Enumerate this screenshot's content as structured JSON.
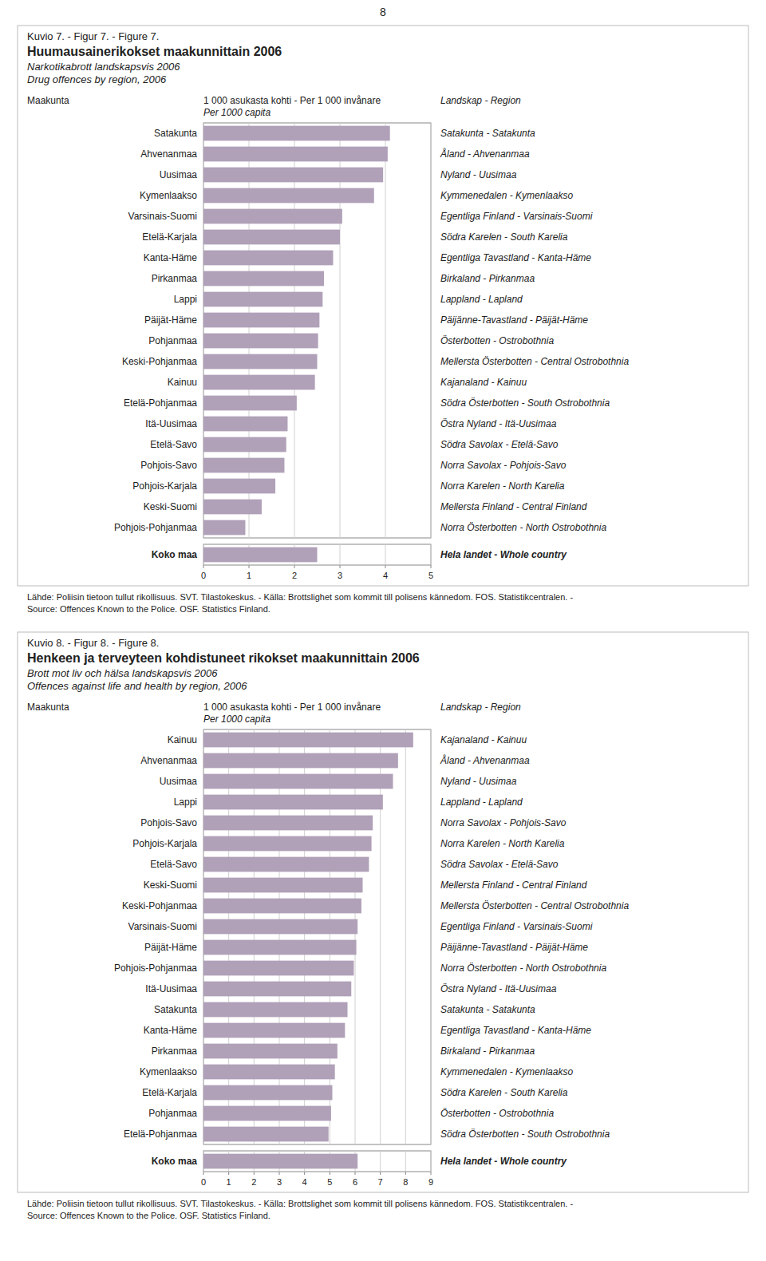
{
  "page_number": "8",
  "chart_data": [
    {
      "type": "bar",
      "orientation": "horizontal",
      "figure_label": "Kuvio 7. - Figur 7. - Figure 7.",
      "title": "Huumausainerikokset maakunnittain 2006",
      "subtitle": [
        "Narkotikabrott landskapsvis 2006",
        "Drug offences by region, 2006"
      ],
      "x_label": [
        "1 000 asukasta kohti - Per 1 000 invånare",
        "Per 1000 capita"
      ],
      "category_header": "Maakunta",
      "secondary_header": "Landskap - Region",
      "categories": [
        "Satakunta",
        "Ahvenanmaa",
        "Uusimaa",
        "Kymenlaakso",
        "Varsinais-Suomi",
        "Etelä-Karjala",
        "Kanta-Häme",
        "Pirkanmaa",
        "Lappi",
        "Päijät-Häme",
        "Pohjanmaa",
        "Keski-Pohjanmaa",
        "Kainuu",
        "Etelä-Pohjanmaa",
        "Itä-Uusimaa",
        "Etelä-Savo",
        "Pohjois-Savo",
        "Pohjois-Karjala",
        "Keski-Suomi",
        "Pohjois-Pohjanmaa"
      ],
      "secondary_labels": [
        "Satakunta - Satakunta",
        "Åland - Ahvenanmaa",
        "Nyland - Uusimaa",
        "Kymmenedalen - Kymenlaakso",
        "Egentliga Finland - Varsinais-Suomi",
        "Södra Karelen - South Karelia",
        "Egentliga Tavastland - Kanta-Häme",
        "Birkaland - Pirkanmaa",
        "Lappland - Lapland",
        "Päijänne-Tavastland - Päijät-Häme",
        "Österbotten - Ostrobothnia",
        "Mellersta Österbotten - Central Ostrobothnia",
        "Kajanaland - Kainuu",
        "Södra Österbotten - South Ostrobothnia",
        "Östra Nyland - Itä-Uusimaa",
        "Södra Savolax - Etelä-Savo",
        "Norra Savolax - Pohjois-Savo",
        "Norra Karelen - North Karelia",
        "Mellersta Finland - Central Finland",
        "Norra Österbotten - North Ostrobothnia"
      ],
      "values": [
        4.1,
        4.05,
        3.95,
        3.75,
        3.05,
        3.0,
        2.85,
        2.65,
        2.62,
        2.55,
        2.52,
        2.5,
        2.45,
        2.05,
        1.85,
        1.82,
        1.78,
        1.58,
        1.28,
        0.92
      ],
      "total": {
        "category": "Koko maa",
        "secondary_label": "Hela landet - Whole country",
        "value": 2.5
      },
      "xlim": [
        0,
        5
      ],
      "xticks": [
        0,
        1,
        2,
        3,
        4,
        5
      ],
      "grid": true,
      "color": "#b0a0b8",
      "source": [
        "Lähde: Poliisin tietoon tullut rikollisuus. SVT. Tilastokeskus. - Källa: Brottslighet som kommit till polisens kännedom. FOS. Statistikcentralen. -",
        "Source: Offences Known to the Police. OSF. Statistics Finland."
      ]
    },
    {
      "type": "bar",
      "orientation": "horizontal",
      "figure_label": "Kuvio 8. - Figur 8. - Figure 8.",
      "title": "Henkeen ja terveyteen kohdistuneet rikokset maakunnittain 2006",
      "subtitle": [
        "Brott mot liv och hälsa landskapsvis 2006",
        "Offences against life and health by region, 2006"
      ],
      "x_label": [
        "1 000 asukasta kohti - Per 1 000 invånare",
        "Per 1000 capita"
      ],
      "category_header": "Maakunta",
      "secondary_header": "Landskap - Region",
      "categories": [
        "Kainuu",
        "Ahvenanmaa",
        "Uusimaa",
        "Lappi",
        "Pohjois-Savo",
        "Pohjois-Karjala",
        "Etelä-Savo",
        "Keski-Suomi",
        "Keski-Pohjanmaa",
        "Varsinais-Suomi",
        "Päijät-Häme",
        "Pohjois-Pohjanmaa",
        "Itä-Uusimaa",
        "Satakunta",
        "Kanta-Häme",
        "Pirkanmaa",
        "Kymenlaakso",
        "Etelä-Karjala",
        "Pohjanmaa",
        "Etelä-Pohjanmaa"
      ],
      "secondary_labels": [
        "Kajanaland - Kainuu",
        "Åland - Ahvenanmaa",
        "Nyland - Uusimaa",
        "Lappland - Lapland",
        "Norra Savolax - Pohjois-Savo",
        "Norra Karelen - North Karelia",
        "Södra Savolax - Etelä-Savo",
        "Mellersta Finland - Central Finland",
        "Mellersta Österbotten - Central Ostrobothnia",
        "Egentliga Finland - Varsinais-Suomi",
        "Päijänne-Tavastland - Päijät-Häme",
        "Norra Österbotten - North Ostrobothnia",
        "Östra Nyland - Itä-Uusimaa",
        "Satakunta - Satakunta",
        "Egentliga Tavastland - Kanta-Häme",
        "Birkaland - Pirkanmaa",
        "Kymmenedalen - Kymenlaakso",
        "Södra Karelen - South Karelia",
        "Österbotten - Ostrobothnia",
        "Södra Österbotten - South Ostrobothnia"
      ],
      "values": [
        8.3,
        7.7,
        7.5,
        7.1,
        6.7,
        6.65,
        6.55,
        6.3,
        6.25,
        6.1,
        6.05,
        5.95,
        5.85,
        5.7,
        5.6,
        5.3,
        5.2,
        5.1,
        5.05,
        4.95
      ],
      "total": {
        "category": "Koko maa",
        "secondary_label": "Hela landet - Whole country",
        "value": 6.1
      },
      "xlim": [
        0,
        9
      ],
      "xticks": [
        0,
        1,
        2,
        3,
        4,
        5,
        6,
        7,
        8,
        9
      ],
      "grid": true,
      "color": "#b0a0b8",
      "source": [
        "Lähde: Poliisin tietoon tullut rikollisuus. SVT. Tilastokeskus. - Källa: Brottslighet som kommit till polisens kännedom. FOS. Statistikcentralen. -",
        "Source: Offences Known to the Police. OSF. Statistics Finland."
      ]
    }
  ]
}
